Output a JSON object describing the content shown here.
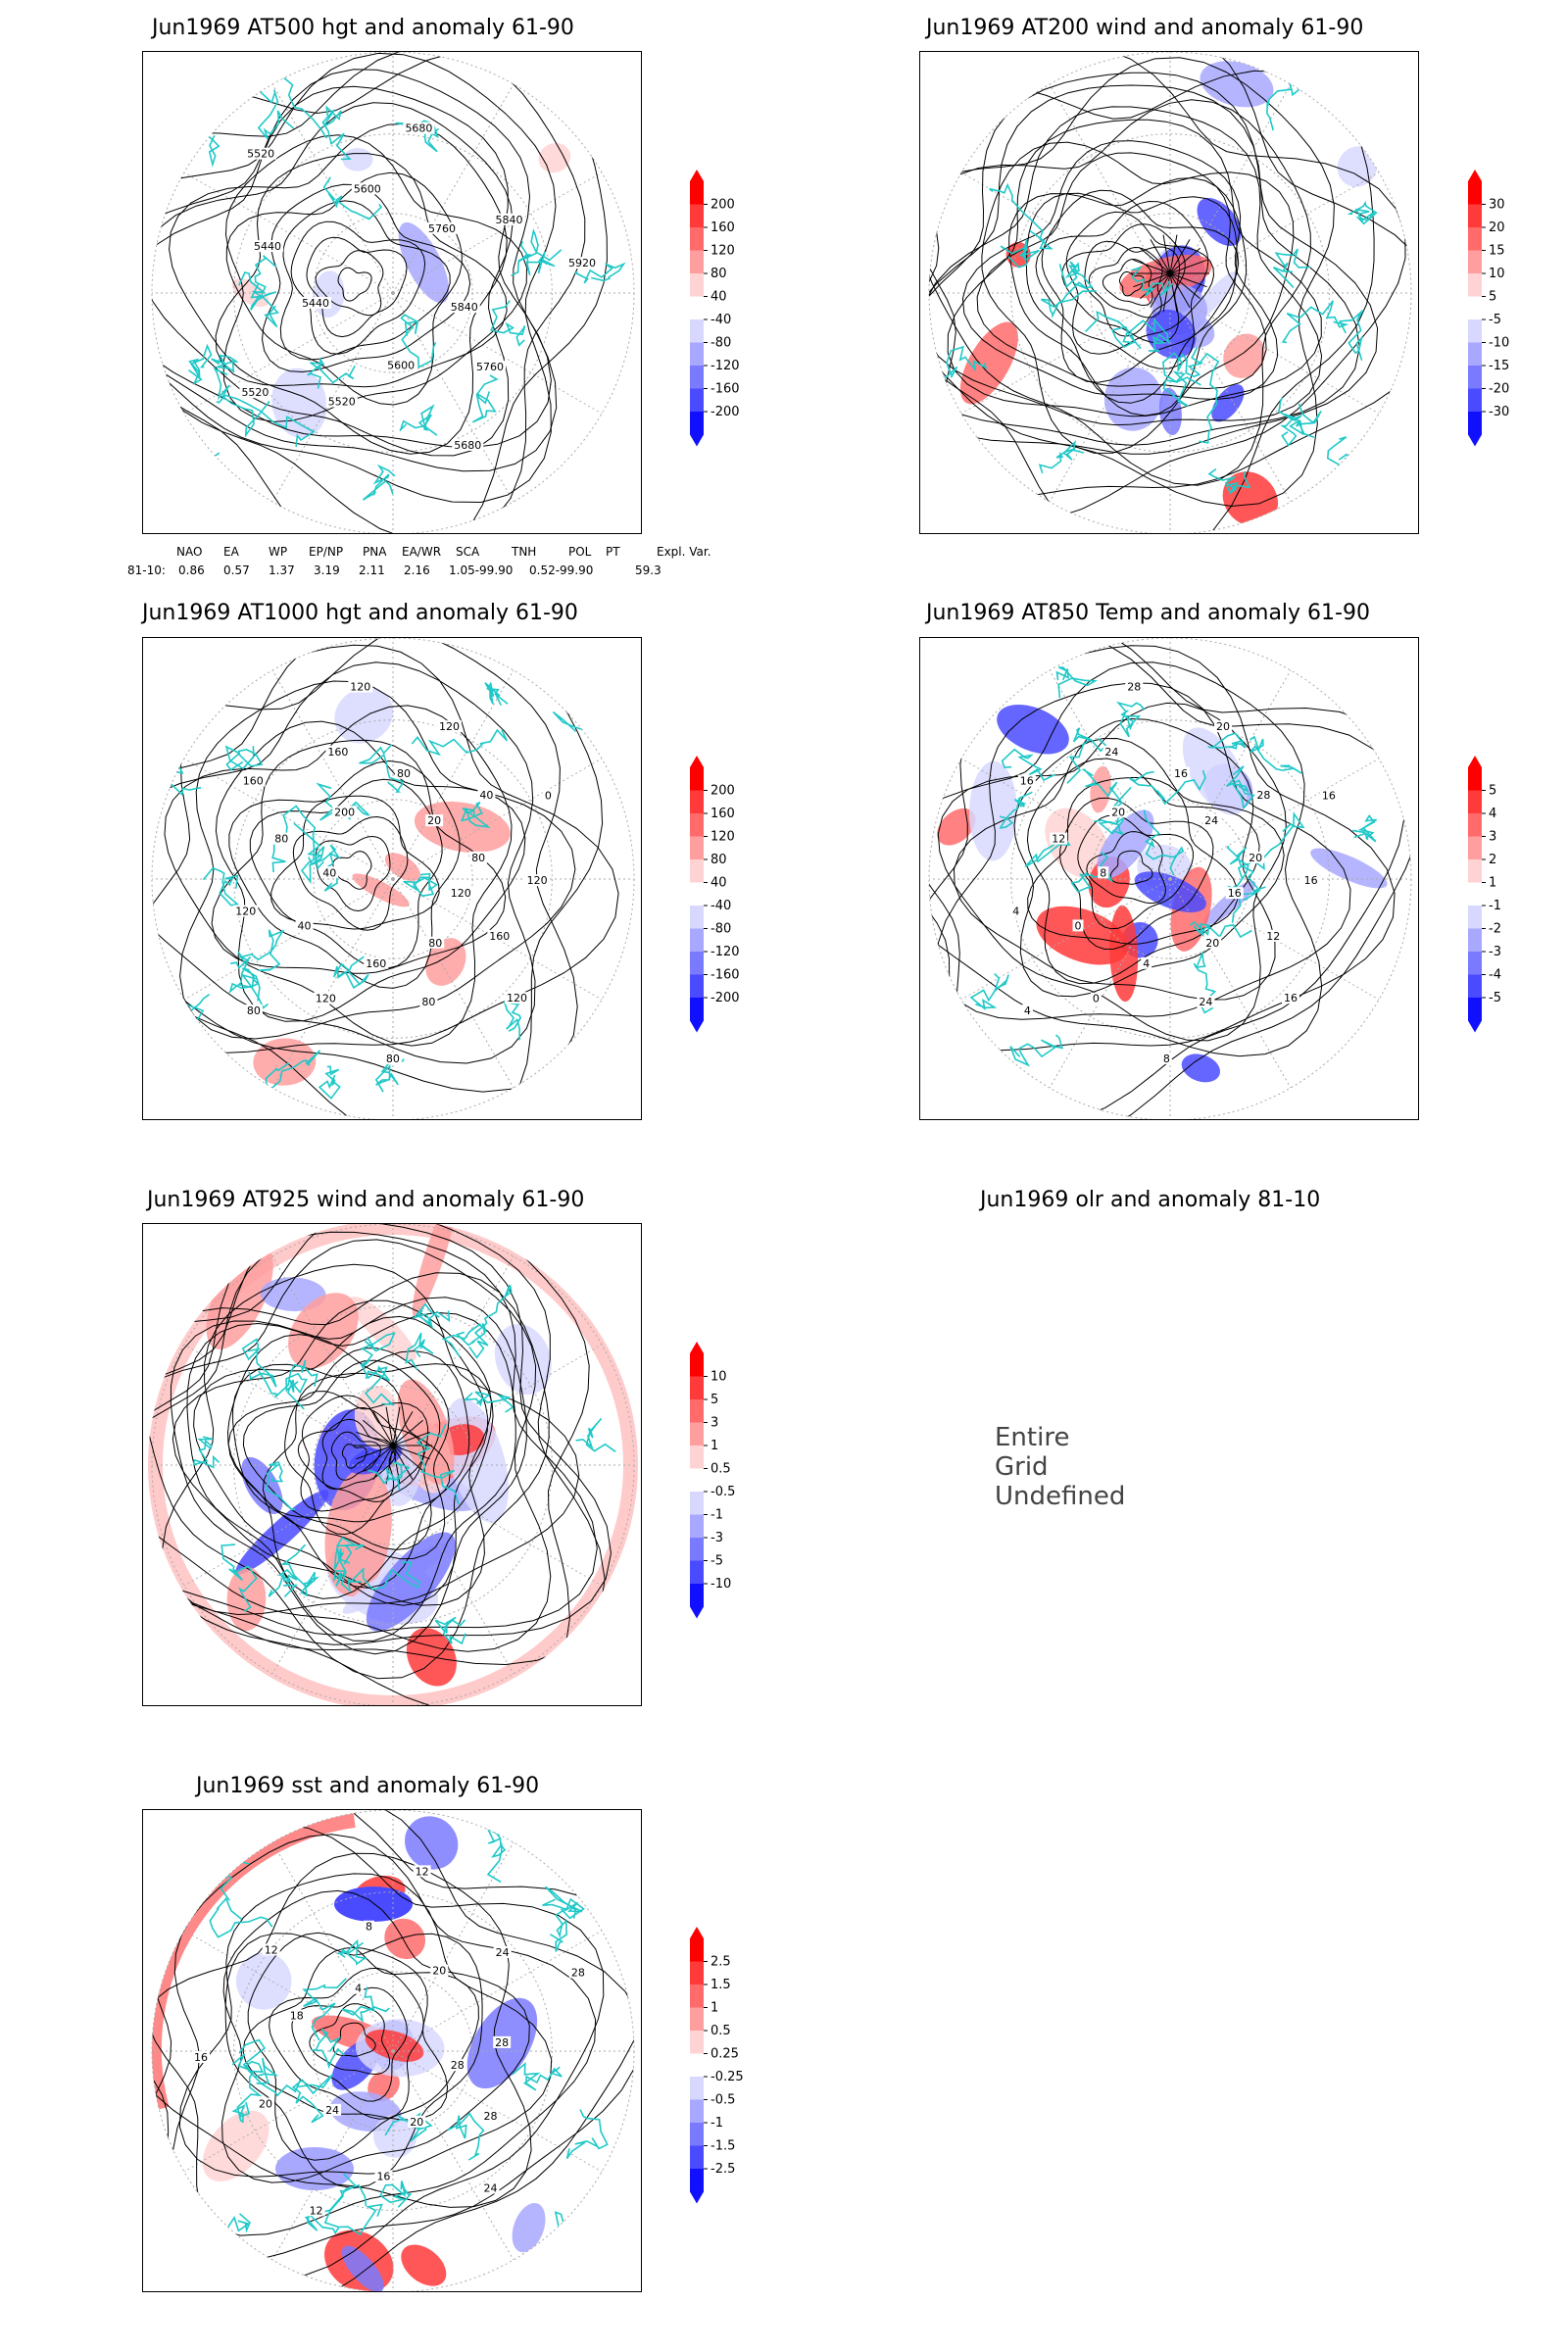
{
  "panels": [
    {
      "id": "p500",
      "title": "Jun1969 AT500 hgt and anomaly 61-90",
      "colorbar": [
        "200",
        "160",
        "120",
        "80",
        "40",
        "-40",
        "-80",
        "-120",
        "-160",
        "-200"
      ],
      "contour_labels": [
        "5840",
        "5760",
        "5680",
        "5600",
        "5520",
        "5520",
        "5440",
        "5440",
        "5520",
        "5600",
        "5680",
        "5760",
        "5840",
        "5920"
      ]
    },
    {
      "id": "p200",
      "title": "Jun1969 AT200 wind and anomaly 61-90",
      "colorbar": [
        "30",
        "20",
        "15",
        "10",
        "5",
        "-5",
        "-10",
        "-15",
        "-20",
        "-30"
      ],
      "contour_labels": []
    },
    {
      "id": "p1000",
      "title": "Jun1969 AT1000 hgt and anomaly 61-90",
      "colorbar": [
        "200",
        "160",
        "120",
        "80",
        "40",
        "-40",
        "-80",
        "-120",
        "-160",
        "-200"
      ],
      "contour_labels": [
        "120",
        "160",
        "120",
        "80",
        "80",
        "80",
        "160",
        "120",
        "80",
        "40",
        "120",
        "40",
        "80",
        "160",
        "200",
        "160",
        "120",
        "80",
        "120",
        "20",
        "40",
        "0",
        "80",
        "120"
      ]
    },
    {
      "id": "p850",
      "title": "Jun1969 AT850 Temp and anomaly 61-90",
      "colorbar": [
        "5",
        "4",
        "3",
        "2",
        "1",
        "-1",
        "-2",
        "-3",
        "-4",
        "-5"
      ],
      "contour_labels": [
        "16",
        "12",
        "16",
        "20",
        "24",
        "8",
        "4",
        "0",
        "4",
        "0",
        "4",
        "8",
        "12",
        "16",
        "20",
        "24",
        "28",
        "16",
        "20",
        "24",
        "28",
        "16",
        "20",
        "16"
      ]
    },
    {
      "id": "p925",
      "title": "Jun1969 AT925 wind and anomaly 61-90",
      "colorbar": [
        "10",
        "5",
        "3",
        "1",
        "0.5",
        "-0.5",
        "-1",
        "-3",
        "-5",
        "-10"
      ],
      "contour_labels": []
    },
    {
      "id": "polr",
      "title": "Jun1969 olr and anomaly 81-10",
      "undefined_text": "Entire Grid Undefined"
    },
    {
      "id": "psst",
      "title": "Jun1969 sst and anomaly 61-90",
      "colorbar": [
        "2.5",
        "1.5",
        "1",
        "0.5",
        "0.25",
        "-0.25",
        "-0.5",
        "-1",
        "-1.5",
        "-2.5"
      ],
      "contour_labels": [
        "28",
        "28",
        "24",
        "20",
        "16",
        "12",
        "24",
        "20",
        "16",
        "18",
        "12",
        "4",
        "8",
        "12",
        "20",
        "24",
        "28",
        "28"
      ]
    }
  ],
  "teleconnection": {
    "headers": [
      "NAO",
      "EA",
      "WP",
      "EP/NP",
      "PNA",
      "EA/WR",
      "SCA",
      "TNH",
      "POL",
      "PT",
      "Expl. Var."
    ],
    "row_label": "81-10:",
    "values": [
      "0.86",
      "0.57",
      "1.37",
      "3.19",
      "2.11",
      "2.16",
      "1.05-99.90",
      "0.52-99.90",
      "59.3"
    ]
  },
  "colors": {
    "anomaly_pos": [
      "#ff0000",
      "#ff3a3a",
      "#ff6b6b",
      "#ff9e9e",
      "#ffd3d3"
    ],
    "anomaly_neg": [
      "#d8d8ff",
      "#a8a8ff",
      "#7a7aff",
      "#4a4aff",
      "#1010ff"
    ],
    "coast": "#20c8c8",
    "contour": "#000000",
    "grid": "#aaaaaa"
  }
}
